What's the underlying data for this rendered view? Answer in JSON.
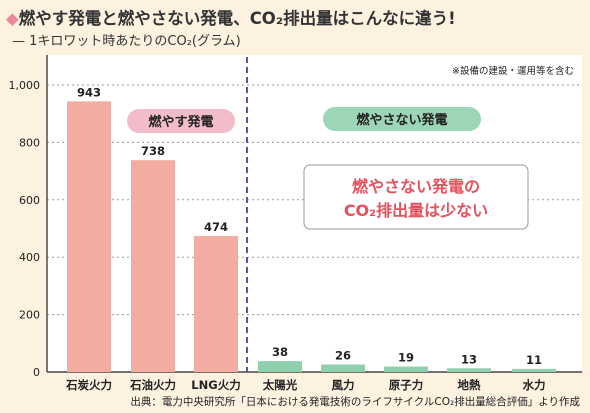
{
  "header": {
    "title": "燃やす発電と燃やさない発電、CO₂排出量はこんなに違う!",
    "subtitle": "— 1キロワット時あたりのCO₂(グラム)"
  },
  "note": "※設備の建設・運用等を含む",
  "source": "出典：電力中央研究所「日本における発電技術のライフサイクルCO₂排出量総合評価」より作成",
  "chart_data": {
    "type": "bar",
    "categories": [
      "石炭火力",
      "石油火力",
      "LNG火力",
      "太陽光",
      "風力",
      "原子力",
      "地熱",
      "水力"
    ],
    "values": [
      943,
      738,
      474,
      38,
      26,
      19,
      13,
      11
    ],
    "groups": [
      {
        "label": "燃やす発電",
        "indices": [
          0,
          1,
          2
        ],
        "bar_color": "#f2aca0",
        "badge_color": "#f3bccb"
      },
      {
        "label": "燃やさない発電",
        "indices": [
          3,
          4,
          5,
          6,
          7
        ],
        "bar_color": "#8fd0ad",
        "badge_color": "#9dd6b6"
      }
    ],
    "yticks": [
      0,
      200,
      400,
      600,
      800,
      1000
    ],
    "ytick_labels": [
      "0",
      "200",
      "400",
      "600",
      "800",
      "1,000"
    ],
    "ylim": [
      0,
      1000
    ],
    "grid": true,
    "callout": [
      "燃やさない発電の",
      "CO₂排出量は少ない"
    ],
    "callout_color": "#e8505c"
  }
}
